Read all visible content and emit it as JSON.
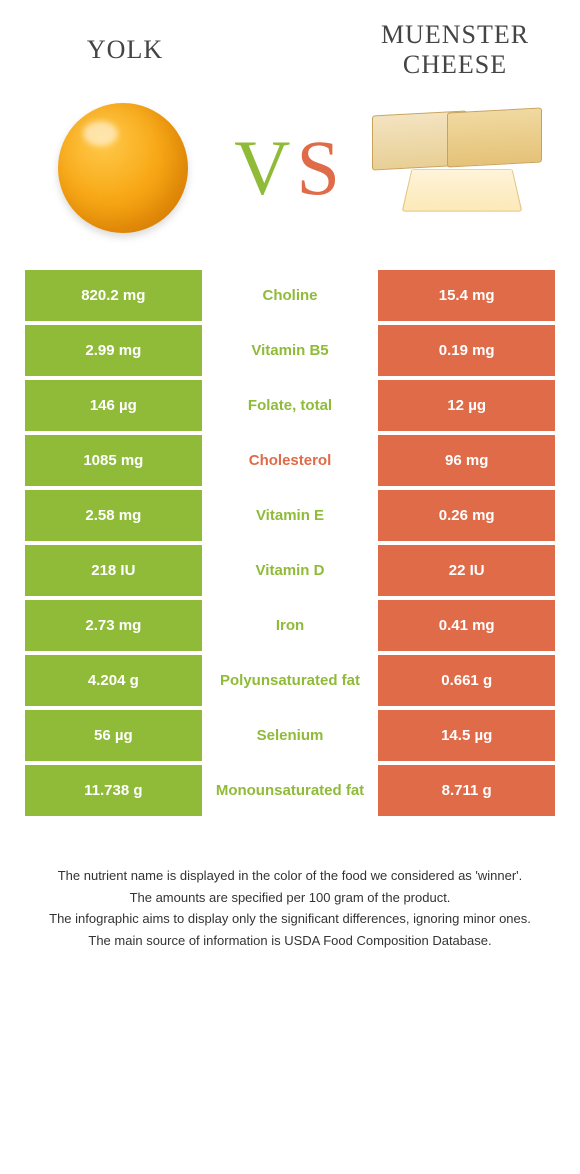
{
  "colors": {
    "food1": "#8fbb39",
    "food2": "#df6b48",
    "background": "#ffffff"
  },
  "header": {
    "food1_name": "Yolk",
    "food2_name": "Muenster cheese",
    "vs_v": "V",
    "vs_s": "S"
  },
  "nutrients": [
    {
      "name": "Choline",
      "left": "820.2 mg",
      "right": "15.4 mg",
      "winner": "food1"
    },
    {
      "name": "Vitamin B5",
      "left": "2.99 mg",
      "right": "0.19 mg",
      "winner": "food1"
    },
    {
      "name": "Folate, total",
      "left": "146 µg",
      "right": "12 µg",
      "winner": "food1"
    },
    {
      "name": "Cholesterol",
      "left": "1085 mg",
      "right": "96 mg",
      "winner": "food2"
    },
    {
      "name": "Vitamin E",
      "left": "2.58 mg",
      "right": "0.26 mg",
      "winner": "food1"
    },
    {
      "name": "Vitamin D",
      "left": "218 IU",
      "right": "22 IU",
      "winner": "food1"
    },
    {
      "name": "Iron",
      "left": "2.73 mg",
      "right": "0.41 mg",
      "winner": "food1"
    },
    {
      "name": "Polyunsaturated fat",
      "left": "4.204 g",
      "right": "0.661 g",
      "winner": "food1"
    },
    {
      "name": "Selenium",
      "left": "56 µg",
      "right": "14.5 µg",
      "winner": "food1"
    },
    {
      "name": "Monounsaturated fat",
      "left": "11.738 g",
      "right": "8.711 g",
      "winner": "food1"
    }
  ],
  "footer": {
    "line1": "The nutrient name is displayed in the color of the food we considered as 'winner'.",
    "line2": "The amounts are specified per 100 gram of the product.",
    "line3": "The infographic aims to display only the significant differences, ignoring minor ones.",
    "line4": "The main source of information is USDA Food Composition Database."
  }
}
